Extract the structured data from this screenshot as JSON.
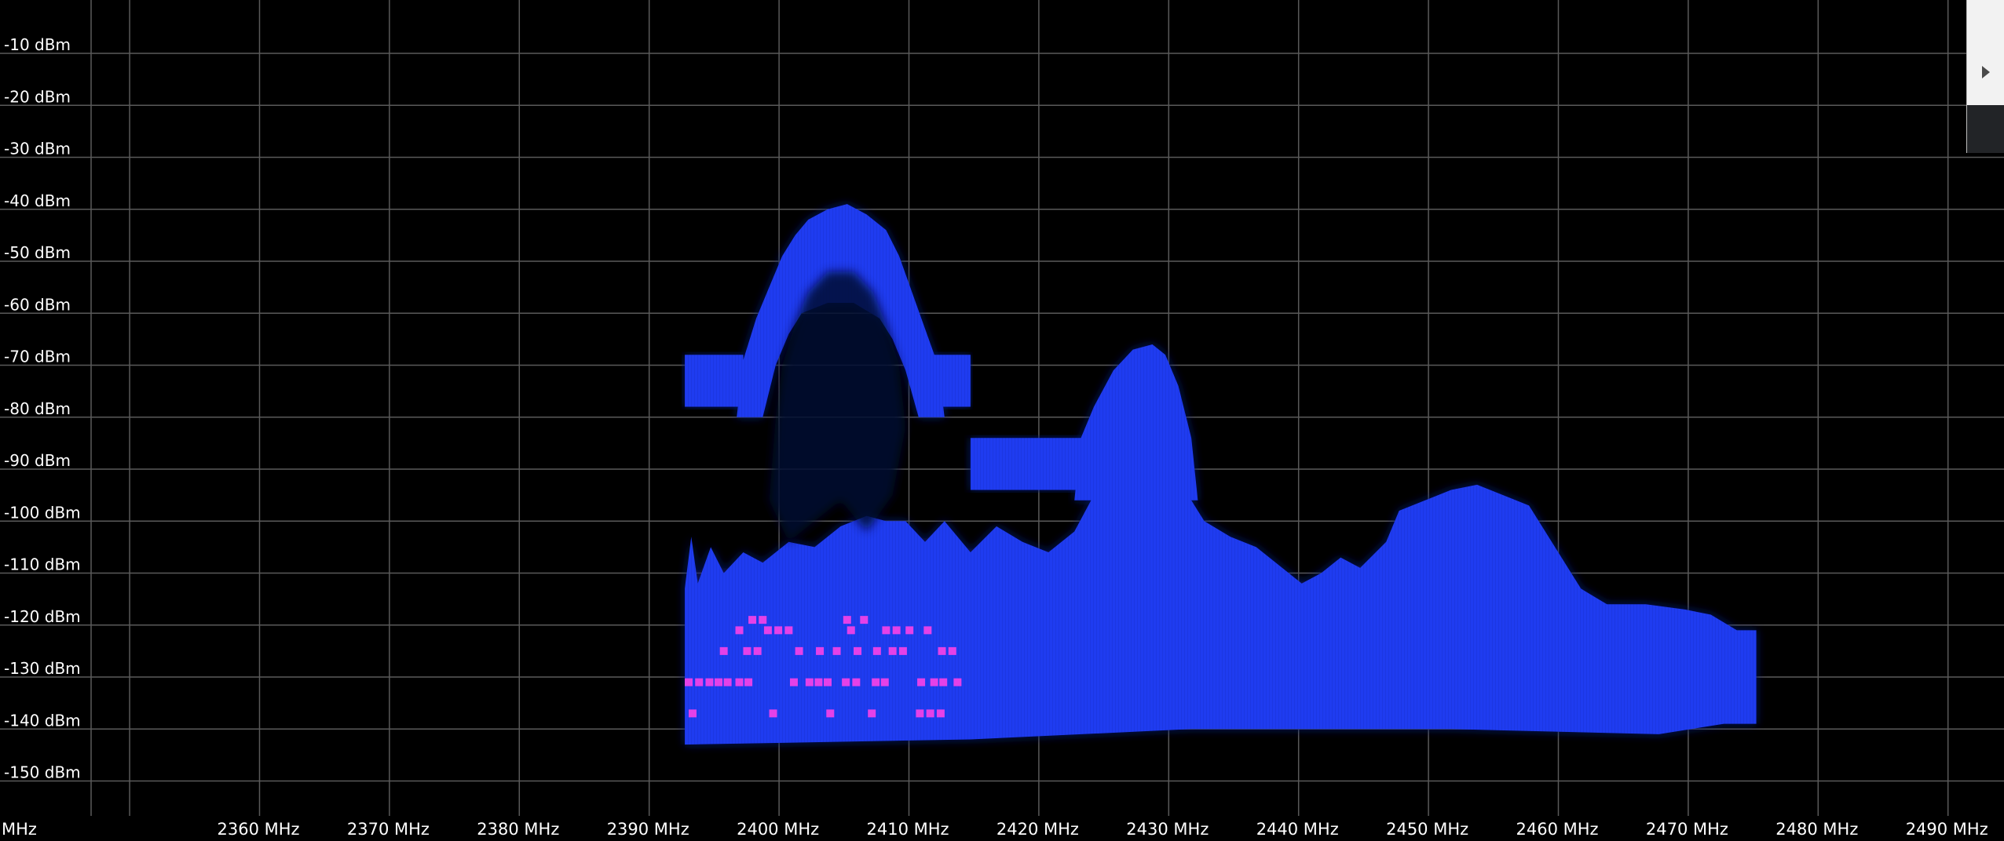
{
  "window": {
    "title": ""
  },
  "colors": {
    "background": "#000000",
    "grid": "#5a5a5a",
    "label": "#ffffff",
    "spectrum_fill": "#1f3cf0",
    "spectrum_shadow": "#0c1c78",
    "marker": "#e441e8",
    "panel_light": "#f2f2f2",
    "panel_dark": "#222427"
  },
  "side_panel": {
    "toggle_icon": "play-right-icon"
  },
  "chart_data": {
    "type": "area",
    "xlabel": "",
    "ylabel": "",
    "xunit": "MHz",
    "yunit": "dBm",
    "xlim": [
      2350,
      2502
    ],
    "ylim": [
      -160,
      -2
    ],
    "grid": true,
    "legend": "none",
    "x_tick_labels": [
      {
        "value": 2350,
        "text": "MHz"
      },
      {
        "value": 2360,
        "text": "2360 MHz"
      },
      {
        "value": 2370,
        "text": "2370 MHz"
      },
      {
        "value": 2380,
        "text": "2380 MHz"
      },
      {
        "value": 2390,
        "text": "2390 MHz"
      },
      {
        "value": 2400,
        "text": "2400 MHz"
      },
      {
        "value": 2410,
        "text": "2410 MHz"
      },
      {
        "value": 2420,
        "text": "2420 MHz"
      },
      {
        "value": 2430,
        "text": "2430 MHz"
      },
      {
        "value": 2440,
        "text": "2440 MHz"
      },
      {
        "value": 2450,
        "text": "2450 MHz"
      },
      {
        "value": 2460,
        "text": "2460 MHz"
      },
      {
        "value": 2470,
        "text": "2470 MHz"
      },
      {
        "value": 2480,
        "text": "2480 MHz"
      },
      {
        "value": 2490,
        "text": "2490 MHz"
      },
      {
        "value": 2500,
        "text": "2500 MHz"
      }
    ],
    "y_tick_labels": [
      {
        "value": -10,
        "text": "-10 dBm"
      },
      {
        "value": -20,
        "text": "-20 dBm"
      },
      {
        "value": -30,
        "text": "-30 dBm"
      },
      {
        "value": -40,
        "text": "-40 dBm"
      },
      {
        "value": -50,
        "text": "-50 dBm"
      },
      {
        "value": -60,
        "text": "-60 dBm"
      },
      {
        "value": -70,
        "text": "-70 dBm"
      },
      {
        "value": -80,
        "text": "-80 dBm"
      },
      {
        "value": -90,
        "text": "-90 dBm"
      },
      {
        "value": -100,
        "text": "-100 dBm"
      },
      {
        "value": -110,
        "text": "-110 dBm"
      },
      {
        "value": -120,
        "text": "-120 dBm"
      },
      {
        "value": -130,
        "text": "-130 dBm"
      },
      {
        "value": -140,
        "text": "-140 dBm"
      },
      {
        "value": -150,
        "text": "-150 dBm"
      }
    ],
    "series": [
      {
        "color": "#1f3cf0",
        "lower_edge": [
          [
            2401,
            -143
          ],
          [
            2423,
            -142
          ],
          [
            2440,
            -140
          ],
          [
            2460,
            -140
          ],
          [
            2476,
            -141
          ],
          [
            2481,
            -139
          ],
          [
            2483.5,
            -139
          ]
        ],
        "upper_edge": [
          [
            2401,
            -113
          ],
          [
            2401.5,
            -103
          ],
          [
            2402,
            -112
          ],
          [
            2403,
            -105
          ],
          [
            2404,
            -110
          ],
          [
            2405.5,
            -106
          ],
          [
            2407,
            -108
          ],
          [
            2409,
            -104
          ],
          [
            2411,
            -105
          ],
          [
            2413,
            -101
          ],
          [
            2415,
            -99
          ],
          [
            2416.5,
            -100
          ],
          [
            2418,
            -100
          ],
          [
            2419.5,
            -104
          ],
          [
            2421,
            -100
          ],
          [
            2423,
            -106
          ],
          [
            2425,
            -101
          ],
          [
            2427,
            -104
          ],
          [
            2429,
            -106
          ],
          [
            2431,
            -102
          ],
          [
            2432.5,
            -95
          ],
          [
            2434,
            -88
          ],
          [
            2435.5,
            -82
          ],
          [
            2437,
            -80
          ],
          [
            2438,
            -82
          ],
          [
            2439,
            -88
          ],
          [
            2440,
            -96
          ],
          [
            2441,
            -100
          ],
          [
            2443,
            -103
          ],
          [
            2445,
            -105
          ],
          [
            2447,
            -109
          ],
          [
            2448.5,
            -112
          ],
          [
            2450,
            -110
          ],
          [
            2451.5,
            -107
          ],
          [
            2453,
            -109
          ],
          [
            2455,
            -104
          ],
          [
            2456,
            -98
          ],
          [
            2458,
            -96
          ],
          [
            2460,
            -94
          ],
          [
            2462,
            -93
          ],
          [
            2464,
            -95
          ],
          [
            2466,
            -97
          ],
          [
            2468,
            -105
          ],
          [
            2470,
            -113
          ],
          [
            2472,
            -116
          ],
          [
            2475,
            -116
          ],
          [
            2478,
            -117
          ],
          [
            2480,
            -118
          ],
          [
            2482,
            -121
          ],
          [
            2483.5,
            -121
          ]
        ]
      },
      {
        "color": "#1f3cf0",
        "shape": "dome",
        "points": [
          [
            2405,
            -80
          ],
          [
            2405.5,
            -69
          ],
          [
            2406.5,
            -61
          ],
          [
            2407.5,
            -55
          ],
          [
            2408.5,
            -49
          ],
          [
            2409.5,
            -45
          ],
          [
            2410.5,
            -42
          ],
          [
            2412,
            -40
          ],
          [
            2413.5,
            -39
          ],
          [
            2415,
            -41
          ],
          [
            2416.5,
            -44
          ],
          [
            2417.5,
            -49
          ],
          [
            2418.5,
            -56
          ],
          [
            2419.5,
            -63
          ],
          [
            2420.5,
            -70
          ],
          [
            2421,
            -80
          ],
          [
            2419,
            -80
          ],
          [
            2418,
            -71
          ],
          [
            2417,
            -65
          ],
          [
            2416,
            -61
          ],
          [
            2414,
            -58
          ],
          [
            2412,
            -58
          ],
          [
            2410,
            -60
          ],
          [
            2409,
            -64
          ],
          [
            2408,
            -70
          ],
          [
            2407,
            -80
          ]
        ]
      },
      {
        "color": "#1f3cf0",
        "shape": "plateau",
        "points": [
          [
            2401,
            -68
          ],
          [
            2405.5,
            -68
          ],
          [
            2405.5,
            -78
          ],
          [
            2401,
            -78
          ]
        ]
      },
      {
        "color": "#1f3cf0",
        "shape": "plateau",
        "points": [
          [
            2420,
            -68
          ],
          [
            2423,
            -68
          ],
          [
            2423,
            -78
          ],
          [
            2420,
            -78
          ]
        ]
      },
      {
        "color": "#1f3cf0",
        "shape": "dome",
        "points": [
          [
            2431,
            -96
          ],
          [
            2431.5,
            -84
          ],
          [
            2432.5,
            -78
          ],
          [
            2434,
            -71
          ],
          [
            2435.5,
            -67
          ],
          [
            2437,
            -66
          ],
          [
            2438,
            -68
          ],
          [
            2439,
            -74
          ],
          [
            2440,
            -84
          ],
          [
            2440.5,
            -96
          ]
        ]
      },
      {
        "color": "#1f3cf0",
        "shape": "plateau",
        "points": [
          [
            2423,
            -84
          ],
          [
            2432,
            -84
          ],
          [
            2432,
            -94
          ],
          [
            2423,
            -94
          ]
        ]
      }
    ],
    "markers": [
      {
        "x": 2406.2,
        "y": -119
      },
      {
        "x": 2407.0,
        "y": -119
      },
      {
        "x": 2413.5,
        "y": -119
      },
      {
        "x": 2414.8,
        "y": -119
      },
      {
        "x": 2405.2,
        "y": -121
      },
      {
        "x": 2407.4,
        "y": -121
      },
      {
        "x": 2408.2,
        "y": -121
      },
      {
        "x": 2409.0,
        "y": -121
      },
      {
        "x": 2413.8,
        "y": -121
      },
      {
        "x": 2416.5,
        "y": -121
      },
      {
        "x": 2417.3,
        "y": -121
      },
      {
        "x": 2418.3,
        "y": -121
      },
      {
        "x": 2419.7,
        "y": -121
      },
      {
        "x": 2404.0,
        "y": -125
      },
      {
        "x": 2405.8,
        "y": -125
      },
      {
        "x": 2406.6,
        "y": -125
      },
      {
        "x": 2409.8,
        "y": -125
      },
      {
        "x": 2411.4,
        "y": -125
      },
      {
        "x": 2412.7,
        "y": -125
      },
      {
        "x": 2414.3,
        "y": -125
      },
      {
        "x": 2415.8,
        "y": -125
      },
      {
        "x": 2417.0,
        "y": -125
      },
      {
        "x": 2417.8,
        "y": -125
      },
      {
        "x": 2420.8,
        "y": -125
      },
      {
        "x": 2421.6,
        "y": -125
      },
      {
        "x": 2401.3,
        "y": -131
      },
      {
        "x": 2402.1,
        "y": -131
      },
      {
        "x": 2402.9,
        "y": -131
      },
      {
        "x": 2403.6,
        "y": -131
      },
      {
        "x": 2404.3,
        "y": -131
      },
      {
        "x": 2405.2,
        "y": -131
      },
      {
        "x": 2405.9,
        "y": -131
      },
      {
        "x": 2409.4,
        "y": -131
      },
      {
        "x": 2410.6,
        "y": -131
      },
      {
        "x": 2411.3,
        "y": -131
      },
      {
        "x": 2412.0,
        "y": -131
      },
      {
        "x": 2413.4,
        "y": -131
      },
      {
        "x": 2414.2,
        "y": -131
      },
      {
        "x": 2415.7,
        "y": -131
      },
      {
        "x": 2416.4,
        "y": -131
      },
      {
        "x": 2419.2,
        "y": -131
      },
      {
        "x": 2420.2,
        "y": -131
      },
      {
        "x": 2420.9,
        "y": -131
      },
      {
        "x": 2422.0,
        "y": -131
      },
      {
        "x": 2401.6,
        "y": -137
      },
      {
        "x": 2407.8,
        "y": -137
      },
      {
        "x": 2412.2,
        "y": -137
      },
      {
        "x": 2415.4,
        "y": -137
      },
      {
        "x": 2419.1,
        "y": -137
      },
      {
        "x": 2419.9,
        "y": -137
      },
      {
        "x": 2420.7,
        "y": -137
      }
    ]
  }
}
